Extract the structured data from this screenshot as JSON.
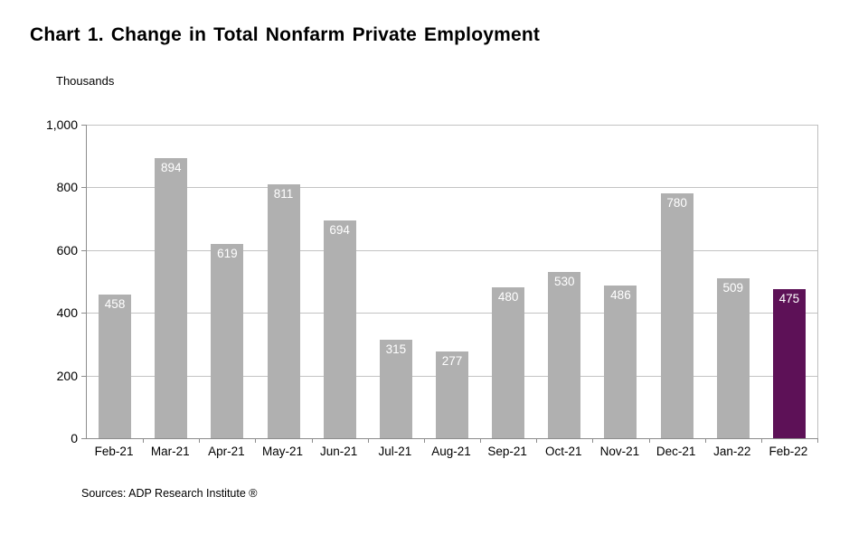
{
  "header": {
    "title": "Chart 1. Change in Total Nonfarm Private Employment",
    "y_axis_title": "Thousands"
  },
  "footer": {
    "source": "Sources: ADP Research Institute ®"
  },
  "chart_data": {
    "type": "bar",
    "title": "Chart 1. Change in Total Nonfarm Private Employment",
    "ylabel": "Thousands",
    "xlabel": "",
    "categories": [
      "Feb-21",
      "Mar-21",
      "Apr-21",
      "May-21",
      "Jun-21",
      "Jul-21",
      "Aug-21",
      "Sep-21",
      "Oct-21",
      "Nov-21",
      "Dec-21",
      "Jan-22",
      "Feb-22"
    ],
    "values": [
      458,
      894,
      619,
      811,
      694,
      315,
      277,
      480,
      530,
      486,
      780,
      509,
      475
    ],
    "ylim": [
      0,
      1000
    ],
    "y_ticks": [
      0,
      200,
      400,
      600,
      800,
      1000
    ],
    "y_tick_labels": [
      "0",
      "200",
      "400",
      "600",
      "800",
      "1,000"
    ],
    "grid": true,
    "legend_position": "none",
    "highlight_index": 12,
    "colors": {
      "bar": "#b0b0b0",
      "highlight": "#5d1157",
      "value_label": "#ffffff",
      "gridline": "#c3c3c3",
      "axis": "#8c8c8c"
    }
  }
}
